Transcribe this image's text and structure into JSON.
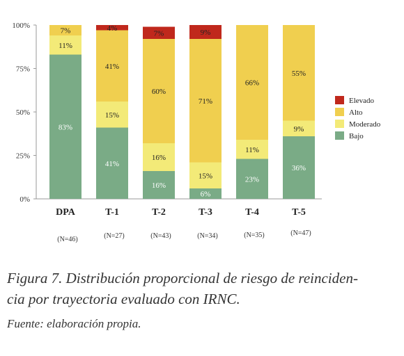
{
  "chart_data": {
    "type": "bar",
    "stacked": true,
    "categories": [
      "DPA",
      "T-1",
      "T-2",
      "T-3",
      "T-4",
      "T-5"
    ],
    "category_notes": [
      "(N=46)",
      "(N=27)",
      "(N=43)",
      "(N=34)",
      "(N=35)",
      "(N=47)"
    ],
    "series": [
      {
        "name": "Bajo",
        "color": "#7aab86",
        "values": [
          83,
          41,
          16,
          6,
          23,
          36
        ],
        "labels": [
          "83%",
          "41%",
          "16%",
          "6%",
          "23%",
          "36%"
        ]
      },
      {
        "name": "Moderado",
        "color": "#f3ea78",
        "values": [
          11,
          15,
          16,
          15,
          11,
          9
        ],
        "labels": [
          "11%",
          "15%",
          "16%",
          "15%",
          "11%",
          "9%"
        ]
      },
      {
        "name": "Alto",
        "color": "#f0cf4f",
        "values": [
          7,
          41,
          60,
          71,
          66,
          55
        ],
        "labels": [
          "7%",
          "41%",
          "60%",
          "71%",
          "66%",
          "55%"
        ]
      },
      {
        "name": "Elevado",
        "color": "#c0281c",
        "values": [
          0,
          4,
          7,
          9,
          0,
          0
        ],
        "labels": [
          "",
          "4%",
          "7%",
          "9%",
          "",
          ""
        ]
      }
    ],
    "yticks": [
      "0%",
      "25%",
      "50%",
      "75%",
      "100%"
    ],
    "ylim": [
      0,
      100
    ],
    "legend": "right",
    "legend_order": [
      "Elevado",
      "Alto",
      "Moderado",
      "Bajo"
    ],
    "grid": false
  },
  "caption": {
    "line1": "Figura 7. Distribución proporcional de riesgo de reinciden-",
    "line2": "cia por trayectoria evaluado con IRNC.",
    "source": "Fuente: elaboración propia."
  }
}
